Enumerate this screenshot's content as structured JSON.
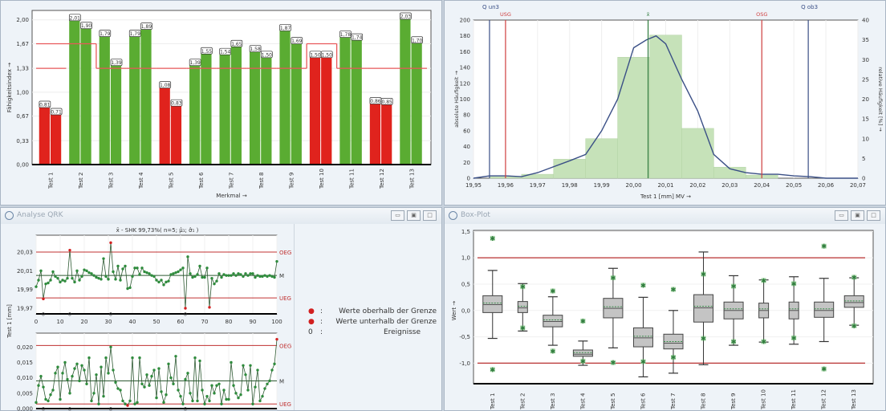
{
  "colors": {
    "green": "#5aac32",
    "red": "#e0231d",
    "limit": "#e8585a",
    "hist": "#c6e2b9",
    "curve": "#3a4f86",
    "spc_point": "#2e8b3c",
    "spc_line": "#2e5a33",
    "out": "#d22020",
    "box": "#c4c4c4"
  },
  "panels": {
    "qrk": {
      "title": "Analyse QRK",
      "buttons": [
        "minimize",
        "restore",
        "maximize"
      ]
    },
    "box": {
      "title": "Box-Plot",
      "buttons": [
        "minimize",
        "restore",
        "maximize"
      ]
    }
  },
  "chart_data": [
    {
      "type": "bar",
      "id": "capability",
      "xlabel": "Merkmal →",
      "ylabel": "Fähigkeitsindex →",
      "yticks": [
        "0,00",
        "0,33",
        "0,67",
        "1,00",
        "1,33",
        "1,67",
        "2,00"
      ],
      "ytick_values": [
        0,
        0.33,
        0.67,
        1.0,
        1.33,
        1.67,
        2.0
      ],
      "ylim": [
        0,
        2.13
      ],
      "categories": [
        "Test 1",
        "Test 2",
        "Test 3",
        "Test 4",
        "Test 5",
        "Test 6",
        "Test 7",
        "Test 8",
        "Test 9",
        "Test 10",
        "Test 11",
        "Test 12",
        "Test 13"
      ],
      "series": [
        {
          "values": [
            0.81,
            2.01,
            1.79,
            1.79,
            1.08,
            1.39,
            1.54,
            1.58,
            1.87,
            1.5,
            1.78,
            0.86,
            2.03
          ]
        },
        {
          "values": [
            0.71,
            1.9,
            1.39,
            1.89,
            0.83,
            1.55,
            1.65,
            1.5,
            1.69,
            1.5,
            1.74,
            0.85,
            1.7
          ]
        }
      ],
      "labels": [
        [
          "0,81",
          "0,71"
        ],
        [
          "2,01",
          "1,90"
        ],
        [
          "1,79",
          "1,39"
        ],
        [
          "1,79",
          "1,89"
        ],
        [
          "1,08",
          "0,83"
        ],
        [
          "1,39",
          "1,55"
        ],
        [
          "1,54",
          "1,65"
        ],
        [
          "1,58",
          "1,50"
        ],
        [
          "1,87",
          "1,69"
        ],
        [
          "1,50",
          "1,50"
        ],
        [
          "1,78",
          "1,74"
        ],
        [
          "0,86",
          "0,85"
        ],
        [
          "2,03",
          "1,70"
        ]
      ],
      "failing": [
        true,
        false,
        false,
        false,
        true,
        false,
        false,
        false,
        false,
        true,
        false,
        true,
        false
      ],
      "limit_per_category": [
        1.67,
        1.67,
        1.33,
        1.33,
        1.33,
        1.33,
        1.33,
        1.33,
        1.33,
        1.67,
        1.33,
        1.33,
        1.33
      ],
      "grid": true
    },
    {
      "type": "bar",
      "id": "histogram",
      "xlabel": "Test 1 [mm]  MV →",
      "ylabel": "absolute Häufigkeit →",
      "ylabel_right": "relative Häufigkeit [%] →",
      "xlim": [
        19.95,
        20.07
      ],
      "ylim": [
        0,
        200
      ],
      "ylim_right": [
        0,
        40
      ],
      "xticks": [
        "19,95",
        "19,96",
        "19,97",
        "19,98",
        "19,99",
        "20,00",
        "20,01",
        "20,02",
        "20,03",
        "20,04",
        "20,05",
        "20,06",
        "20,07"
      ],
      "yticks": [
        "0",
        "20",
        "40",
        "60",
        "80",
        "100",
        "120",
        "140",
        "160",
        "180",
        "200"
      ],
      "yticks_right": [
        "0",
        "5",
        "10",
        "15",
        "20",
        "25",
        "30",
        "35",
        "40"
      ],
      "bins": [
        [
          19.955,
          19.965,
          2
        ],
        [
          19.965,
          19.975,
          5
        ],
        [
          19.975,
          19.985,
          24
        ],
        [
          19.985,
          19.995,
          50
        ],
        [
          19.995,
          20.005,
          153
        ],
        [
          20.005,
          20.015,
          181
        ],
        [
          20.015,
          20.025,
          63
        ],
        [
          20.025,
          20.035,
          14
        ],
        [
          20.035,
          20.045,
          4
        ]
      ],
      "curve": [
        [
          19.95,
          0
        ],
        [
          19.955,
          3
        ],
        [
          19.96,
          3
        ],
        [
          19.965,
          2
        ],
        [
          19.97,
          7
        ],
        [
          19.98,
          22
        ],
        [
          19.985,
          30
        ],
        [
          19.99,
          60
        ],
        [
          19.995,
          100
        ],
        [
          20.0,
          165
        ],
        [
          20.004,
          175
        ],
        [
          20.007,
          180
        ],
        [
          20.01,
          170
        ],
        [
          20.015,
          125
        ],
        [
          20.02,
          85
        ],
        [
          20.025,
          30
        ],
        [
          20.03,
          12
        ],
        [
          20.035,
          7
        ],
        [
          20.04,
          5
        ],
        [
          20.045,
          5
        ],
        [
          20.05,
          3
        ],
        [
          20.055,
          2
        ],
        [
          20.06,
          0
        ],
        [
          20.07,
          0
        ]
      ],
      "vlines": [
        {
          "label": "Q un3",
          "x": 19.955,
          "color": "#3a4f86"
        },
        {
          "label": "USG",
          "x": 19.96,
          "color": "#d04040"
        },
        {
          "label": "x̄",
          "x": 20.0045,
          "color": "#2e7a3c"
        },
        {
          "label": "OSG",
          "x": 20.04,
          "color": "#d04040"
        },
        {
          "label": "Q ob3",
          "x": 20.0545,
          "color": "#3a4f86"
        }
      ],
      "grid": true
    },
    {
      "type": "line",
      "id": "xbar",
      "title": "x̄ - SHK 99,73%( n=5; μ̂₁; σ̂₁ )",
      "ylabel": "Test 1 [mm]",
      "xlim": [
        0,
        100
      ],
      "ylim": [
        19.964,
        20.048
      ],
      "xticks": [
        "0",
        "10",
        "20",
        "30",
        "40",
        "50",
        "60",
        "70",
        "80",
        "90",
        "100"
      ],
      "yticks": [
        "19,97",
        "19,99",
        "20,01",
        "20,03"
      ],
      "ytick_values": [
        19.97,
        19.99,
        20.01,
        20.03
      ],
      "limits": [
        {
          "label": "OEG",
          "y": 20.03
        },
        {
          "label": "M",
          "y": 20.005
        },
        {
          "label": "UEG",
          "y": 19.981
        }
      ],
      "values": [
        19.993,
        20.0,
        20.01,
        19.98,
        19.996,
        19.997,
        20.0,
        20.009,
        20.004,
        20.002,
        19.998,
        20.0,
        19.999,
        20.002,
        20.032,
        20.002,
        19.998,
        20.01,
        20.0,
        20.004,
        20.011,
        20.01,
        20.008,
        20.007,
        20.005,
        20.003,
        20.002,
        20.001,
        20.023,
        20.004,
        20.001,
        20.04,
        20.009,
        20.001,
        20.015,
        20.0,
        20.012,
        20.015,
        19.991,
        19.992,
        20.004,
        20.013,
        20.013,
        20.006,
        20.013,
        20.009,
        20.008,
        20.007,
        20.005,
        20.004,
        20.0,
        19.998,
        20.0,
        19.995,
        19.998,
        19.999,
        20.006,
        20.007,
        20.008,
        20.009,
        20.011,
        20.013,
        19.97,
        20.025,
        20.007,
        20.003,
        20.004,
        20.006,
        20.015,
        20.003,
        20.003,
        20.013,
        19.971,
        20.002,
        19.996,
        19.999,
        20.007,
        20.003,
        20.006,
        20.005,
        20.005,
        20.005,
        20.007,
        20.005,
        20.007,
        20.006,
        20.004,
        20.007,
        20.005,
        20.007,
        20.007,
        20.003,
        20.005,
        20.004,
        20.004,
        20.005,
        20.004,
        20.005,
        20.004,
        20.003,
        20.02
      ],
      "events": [
        3,
        14,
        31,
        62
      ],
      "event_label": "0"
    },
    {
      "type": "line",
      "id": "range",
      "xlim": [
        0,
        100
      ],
      "ylim": [
        0,
        0.0245
      ],
      "yticks": [
        "0,000",
        "0,005",
        "0,010",
        "0,015",
        "0,020"
      ],
      "ytick_values": [
        0,
        0.005,
        0.01,
        0.015,
        0.02
      ],
      "limits": [
        {
          "label": "OEG",
          "y": 0.0205
        },
        {
          "label": "M",
          "y": 0.009
        },
        {
          "label": "UEG",
          "y": 0.0015
        }
      ],
      "values": [
        0.002,
        0.0075,
        0.0105,
        0.007,
        0.003,
        0.0025,
        0.0045,
        0.006,
        0.0115,
        0.0135,
        0.003,
        0.0115,
        0.015,
        0.0095,
        0.005,
        0.0105,
        0.013,
        0.0145,
        0.009,
        0.014,
        0.0125,
        0.008,
        0.0165,
        0.0025,
        0.005,
        0.011,
        0.0015,
        0.0135,
        0.004,
        0.0165,
        0.0115,
        0.02,
        0.0125,
        0.0085,
        0.0065,
        0.006,
        0.0025,
        0.0015,
        0.001,
        0.0025,
        0.0165,
        0.0015,
        0.002,
        0.0165,
        0.008,
        0.007,
        0.011,
        0.0075,
        0.0105,
        0.0125,
        0.0035,
        0.013,
        0.0055,
        0.002,
        0.0045,
        0.0145,
        0.01,
        0.008,
        0.017,
        0.006,
        0.004,
        0.0015,
        0.0095,
        0.0115,
        0.005,
        0.0025,
        0.0165,
        0.0025,
        0.0155,
        0.006,
        0.0015,
        0.004,
        0.0025,
        0.0075,
        0.005,
        0.0075,
        0.008,
        0.0015,
        0.006,
        0.003,
        0.003,
        0.015,
        0.0075,
        0.005,
        0.0035,
        0.0045,
        0.014,
        0.011,
        0.006,
        0.014,
        0.0015,
        0.007,
        0.0125,
        0.0025,
        0.004,
        0.0065,
        0.008,
        0.009,
        0.0125,
        0.0145,
        0.0225
      ],
      "events": [
        3,
        14,
        31,
        62
      ],
      "event_label": "0"
    },
    {
      "type": "box",
      "id": "boxplot",
      "ylabel": "Wert →",
      "ylim": [
        -1.39,
        1.52
      ],
      "yticks": [
        "-1,0",
        "-0,5",
        "0,0",
        "0,5",
        "1,0",
        "1,5"
      ],
      "ytick_values": [
        -1,
        -0.5,
        0,
        0.5,
        1,
        1.5
      ],
      "limits": [
        1.0,
        -1.0
      ],
      "categories": [
        "Test 1",
        "Test 2",
        "Test 3",
        "Test 4",
        "Test 5",
        "Test 6",
        "Test 7",
        "Test 8",
        "Test 9",
        "Test 10",
        "Test 11",
        "Test 12",
        "Test 13"
      ],
      "boxes": [
        {
          "low": -0.53,
          "q1": -0.04,
          "median": 0.11,
          "q3": 0.28,
          "high": 0.76,
          "extremes": [
            1.37,
            -1.12
          ]
        },
        {
          "low": -0.39,
          "q1": -0.04,
          "median": 0.05,
          "q3": 0.17,
          "high": 0.51,
          "extremes": [
            0.45,
            -0.33
          ]
        },
        {
          "low": -0.66,
          "q1": -0.31,
          "median": -0.21,
          "q3": -0.09,
          "high": 0.26,
          "extremes": [
            0.37,
            -0.77
          ]
        },
        {
          "low": -1.04,
          "q1": -0.87,
          "median": -0.83,
          "q3": -0.75,
          "high": -0.58,
          "extremes": [
            -0.2,
            -0.96
          ]
        },
        {
          "low": -0.71,
          "q1": -0.14,
          "median": 0.04,
          "q3": 0.23,
          "high": 0.8,
          "extremes": [
            0.62,
            -0.99
          ]
        },
        {
          "low": -1.26,
          "q1": -0.69,
          "median": -0.52,
          "q3": -0.33,
          "high": 0.25,
          "extremes": [
            0.48,
            -0.97
          ]
        },
        {
          "low": -1.19,
          "q1": -0.73,
          "median": -0.62,
          "q3": -0.45,
          "high": 0.0,
          "extremes": [
            0.4,
            -0.89
          ]
        },
        {
          "low": -1.03,
          "q1": -0.22,
          "median": 0.05,
          "q3": 0.3,
          "high": 1.11,
          "extremes": [
            0.69,
            -0.53
          ]
        },
        {
          "low": -0.66,
          "q1": -0.16,
          "median": 0.0,
          "q3": 0.16,
          "high": 0.66,
          "extremes": [
            0.46,
            -0.59
          ]
        },
        {
          "low": -0.6,
          "q1": -0.14,
          "median": 0.0,
          "q3": 0.14,
          "high": 0.58,
          "extremes": [
            0.57,
            -0.59
          ]
        },
        {
          "low": -0.64,
          "q1": -0.16,
          "median": 0.0,
          "q3": 0.16,
          "high": 0.64,
          "extremes": [
            0.51,
            -0.52
          ]
        },
        {
          "low": -0.59,
          "q1": -0.13,
          "median": 0.0,
          "q3": 0.16,
          "high": 0.61,
          "extremes": [
            1.22,
            -1.11
          ]
        },
        {
          "low": -0.28,
          "q1": 0.06,
          "median": 0.15,
          "q3": 0.28,
          "high": 0.62,
          "extremes": [
            0.63,
            -0.29
          ]
        }
      ]
    }
  ],
  "legend": [
    {
      "symbol": "●",
      "sep": ":",
      "text": "Werte oberhalb der Grenze"
    },
    {
      "symbol": "●",
      "sep": ":",
      "text": "Werte unterhalb der Grenze"
    },
    {
      "symbol": "0",
      "sep": ":",
      "text": "Ereignisse"
    }
  ]
}
